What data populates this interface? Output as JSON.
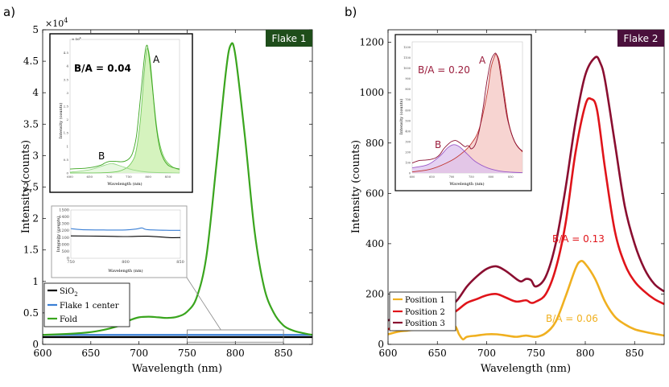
{
  "chart_data": [
    {
      "type": "line",
      "panel_label": "a)",
      "badge": "Flake 1",
      "badge_color": "#1e4d1a",
      "xlabel": "Wavelength (nm)",
      "ylabel": "Intensity (counts)",
      "xlim": [
        600,
        880
      ],
      "ylim": [
        0,
        50000
      ],
      "y_exponent_label": "×10",
      "y_exponent": "4",
      "xticks": [
        600,
        650,
        700,
        750,
        800,
        850
      ],
      "xtick_labels": [
        "600",
        "650",
        "700",
        "750",
        "800",
        "850"
      ],
      "yticks": [
        0,
        5000,
        10000,
        15000,
        20000,
        25000,
        30000,
        35000,
        40000,
        45000,
        50000
      ],
      "ytick_labels": [
        "0",
        "0.5",
        "1",
        "1.5",
        "2",
        "2.5",
        "3",
        "3.5",
        "4",
        "4.5",
        "5"
      ],
      "legend_position": "bottom-left",
      "legend": [
        {
          "label": "SiO",
          "sub": "2"
        },
        {
          "label": "Flake 1 center",
          "sub": ""
        },
        {
          "label": "Fold",
          "sub": ""
        }
      ],
      "series": [
        {
          "name": "SiO2",
          "color": "#000000",
          "x": [
            600,
            700,
            800,
            880
          ],
          "y": [
            1150,
            1150,
            1150,
            1150
          ]
        },
        {
          "name": "Flake 1 center",
          "color": "#3a7fd5",
          "x": [
            600,
            700,
            800,
            880
          ],
          "y": [
            1500,
            1500,
            1500,
            1500
          ]
        },
        {
          "name": "Fold",
          "color": "#3aa51e",
          "x": [
            600,
            640,
            660,
            680,
            690,
            700,
            710,
            720,
            730,
            740,
            750,
            760,
            770,
            780,
            790,
            795,
            800,
            810,
            820,
            830,
            840,
            850,
            860,
            870,
            880
          ],
          "y": [
            1500,
            1800,
            2200,
            3000,
            3800,
            4300,
            4400,
            4300,
            4200,
            4400,
            5200,
            7500,
            14000,
            28000,
            43000,
            47500,
            46000,
            33000,
            18000,
            9000,
            5000,
            3000,
            2200,
            1800,
            1500
          ]
        }
      ],
      "zoom_box": {
        "x": [
          750,
          850
        ],
        "y": [
          350,
          2300
        ]
      },
      "insets": [
        {
          "type": "line",
          "ylabel": "Intensity (counts)",
          "xlabel": "Wavelength (nm)",
          "exponent_label": "× 10",
          "exponent": "4",
          "annotation": "B/A = 0.04",
          "peak_labels": [
            "A",
            "B"
          ],
          "xlim": [
            600,
            880
          ],
          "ylim": [
            0,
            50000
          ],
          "xtick_labels": [
            "600",
            "650",
            "700",
            "750",
            "800",
            "850"
          ],
          "ytick_labels": [
            "0",
            "0.5",
            "1",
            "1.5",
            "2",
            "2.5",
            "3",
            "3.5",
            "4",
            "4.5"
          ],
          "series": [
            {
              "name": "Fold",
              "color": "#3aa51e",
              "x": [
                600,
                640,
                660,
                680,
                690,
                700,
                710,
                720,
                730,
                740,
                750,
                760,
                770,
                780,
                790,
                795,
                800,
                810,
                820,
                830,
                840,
                850,
                860,
                870,
                880
              ],
              "y": [
                1500,
                1800,
                2200,
                3000,
                3800,
                4300,
                4400,
                4300,
                4200,
                4400,
                5200,
                7500,
                14000,
                28000,
                43000,
                47500,
                46000,
                33000,
                18000,
                9000,
                5000,
                3000,
                2200,
                1800,
                1500
              ]
            },
            {
              "name": "Peak A fit",
              "color": "#72c95a",
              "fill": "#c7efa8",
              "x": [
                600,
                700,
                740,
                760,
                770,
                780,
                790,
                797,
                805,
                815,
                825,
                840,
                860,
                880
              ],
              "y": [
                0,
                200,
                1500,
                4500,
                9000,
                20000,
                38000,
                46500,
                42000,
                26000,
                14000,
                6000,
                2500,
                1200
              ]
            },
            {
              "name": "Peak B fit",
              "color": "#9ad98a",
              "fill": "#dff5d5",
              "x": [
                600,
                650,
                680,
                700,
                710,
                730,
                760,
                800,
                880
              ],
              "y": [
                300,
                1200,
                2500,
                3400,
                3500,
                2600,
                1200,
                300,
                0
              ]
            }
          ]
        },
        {
          "type": "line",
          "ylabel": "Intensity (counts)",
          "xlabel": "Wavelength (nm)",
          "xlim": [
            750,
            850
          ],
          "ylim": [
            0,
            1500
          ],
          "xtick_labels": [
            "750",
            "800",
            "850"
          ],
          "ytick_labels": [
            "0",
            "500",
            "1000",
            "1100",
            "1200",
            "1300",
            "1400",
            "1500"
          ],
          "series": [
            {
              "name": "Flake 1 center",
              "color": "#3a7fd5",
              "x": [
                750,
                760,
                780,
                800,
                810,
                815,
                820,
                840,
                850
              ],
              "y": [
                1230,
                1215,
                1210,
                1210,
                1225,
                1240,
                1215,
                1205,
                1205
              ]
            },
            {
              "name": "SiO2",
              "color": "#000000",
              "x": [
                750,
                780,
                800,
                820,
                840,
                850
              ],
              "y": [
                1125,
                1120,
                1115,
                1120,
                1100,
                1100
              ]
            }
          ]
        }
      ]
    },
    {
      "type": "line",
      "panel_label": "b)",
      "badge": "Flake 2",
      "badge_color": "#4a0f3b",
      "xlabel": "Wavelength (nm)",
      "ylabel": "Intensity (counts)",
      "xlim": [
        600,
        880
      ],
      "ylim": [
        0,
        1250
      ],
      "xticks": [
        600,
        650,
        700,
        750,
        800,
        850
      ],
      "xtick_labels": [
        "600",
        "650",
        "700",
        "750",
        "800",
        "850"
      ],
      "yticks": [
        0,
        200,
        400,
        600,
        800,
        1000,
        1200
      ],
      "ytick_labels": [
        "0",
        "200",
        "400",
        "600",
        "800",
        "1000",
        "1200"
      ],
      "legend_position": "bottom-left",
      "legend": [
        {
          "label": "Position 1",
          "sub": ""
        },
        {
          "label": "Position 2",
          "sub": ""
        },
        {
          "label": "Position 3",
          "sub": ""
        }
      ],
      "annotations": [
        {
          "text": "B/A = 0.13",
          "color": "#e0141a"
        },
        {
          "text": "B/A = 0.06",
          "color": "#f0b020"
        }
      ],
      "series": [
        {
          "name": "Position 1",
          "color": "#f0b020",
          "x": [
            600,
            610,
            620,
            630,
            640,
            650,
            660,
            668,
            672,
            676,
            680,
            690,
            700,
            710,
            720,
            730,
            740,
            750,
            760,
            770,
            780,
            790,
            795,
            800,
            810,
            820,
            830,
            840,
            850,
            860,
            870,
            880
          ],
          "y": [
            40,
            50,
            55,
            60,
            62,
            66,
            72,
            72,
            40,
            20,
            30,
            35,
            40,
            40,
            35,
            30,
            35,
            30,
            45,
            90,
            190,
            300,
            330,
            320,
            260,
            170,
            110,
            80,
            60,
            50,
            42,
            35
          ]
        },
        {
          "name": "Position 2",
          "color": "#e0141a",
          "x": [
            600,
            610,
            620,
            630,
            640,
            650,
            660,
            670,
            680,
            690,
            700,
            710,
            720,
            730,
            740,
            745,
            750,
            760,
            770,
            780,
            790,
            800,
            806,
            812,
            820,
            830,
            840,
            850,
            860,
            870,
            880
          ],
          "y": [
            60,
            75,
            85,
            90,
            92,
            100,
            110,
            135,
            165,
            180,
            195,
            200,
            185,
            170,
            175,
            165,
            170,
            200,
            300,
            480,
            760,
            950,
            975,
            930,
            700,
            450,
            320,
            250,
            210,
            180,
            160
          ]
        },
        {
          "name": "Position 3",
          "color": "#8a0e30",
          "x": [
            600,
            610,
            620,
            630,
            640,
            650,
            660,
            670,
            680,
            690,
            700,
            710,
            720,
            730,
            735,
            740,
            745,
            750,
            760,
            770,
            780,
            790,
            800,
            810,
            815,
            820,
            830,
            840,
            850,
            860,
            870,
            880
          ],
          "y": [
            95,
            110,
            120,
            122,
            125,
            132,
            145,
            175,
            230,
            270,
            300,
            310,
            290,
            260,
            250,
            260,
            255,
            230,
            270,
            400,
            620,
            880,
            1070,
            1140,
            1120,
            1050,
            800,
            550,
            400,
            300,
            240,
            210
          ]
        }
      ],
      "insets": [
        {
          "type": "line",
          "ylabel": "Intensity (counts)",
          "xlabel": "Wavelength (nm)",
          "annotation": "B/A = 0.20",
          "peak_labels": [
            "A",
            "B"
          ],
          "xlim": [
            600,
            880
          ],
          "ylim": [
            0,
            1250
          ],
          "xtick_labels": [
            "600",
            "650",
            "700",
            "750",
            "800",
            "850"
          ],
          "ytick_labels": [
            "0",
            "100",
            "200",
            "300",
            "400",
            "500",
            "600",
            "700",
            "800",
            "900",
            "1000",
            "1100",
            "1200"
          ],
          "series": [
            {
              "name": "Position 3",
              "color": "#8a0e30",
              "x": [
                600,
                610,
                620,
                630,
                640,
                650,
                660,
                670,
                680,
                690,
                700,
                710,
                720,
                730,
                735,
                740,
                745,
                750,
                760,
                770,
                780,
                790,
                800,
                810,
                815,
                820,
                830,
                840,
                850,
                860,
                870,
                880
              ],
              "y": [
                95,
                110,
                120,
                122,
                125,
                132,
                145,
                175,
                230,
                270,
                300,
                310,
                290,
                260,
                250,
                260,
                255,
                230,
                270,
                400,
                620,
                880,
                1070,
                1140,
                1120,
                1050,
                800,
                550,
                400,
                300,
                240,
                210
              ]
            },
            {
              "name": "Peak A fit",
              "color": "#c0342e",
              "fill": "#f4c6c2",
              "x": [
                600,
                650,
                700,
                730,
                750,
                770,
                790,
                800,
                810,
                815,
                822,
                832,
                845,
                860,
                880
              ],
              "y": [
                10,
                40,
                120,
                200,
                280,
                420,
                750,
                1000,
                1120,
                1125,
                1050,
                800,
                480,
                300,
                200
              ]
            },
            {
              "name": "Peak B fit",
              "color": "#9b59c8",
              "fill": "#dcc2ee",
              "x": [
                600,
                640,
                670,
                690,
                705,
                720,
                740,
                760,
                790,
                820,
                850,
                880
              ],
              "y": [
                50,
                80,
                160,
                240,
                270,
                250,
                180,
                110,
                50,
                20,
                8,
                3
              ]
            }
          ]
        }
      ]
    }
  ]
}
